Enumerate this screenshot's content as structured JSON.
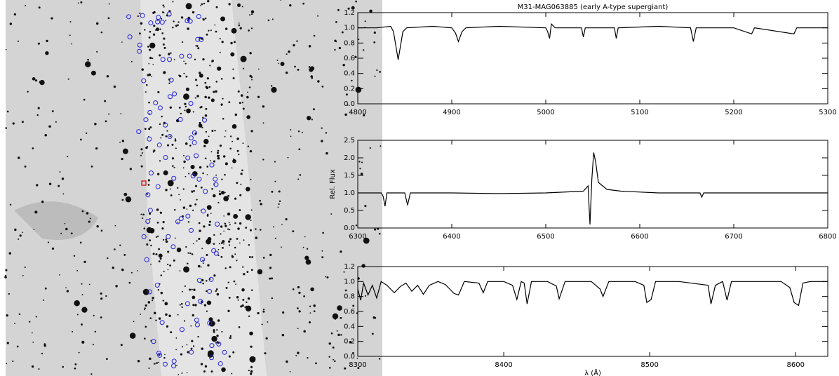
{
  "chart_data": [
    {
      "type": "line",
      "title": "M31-MAG063885 (early A-type supergiant)",
      "color": "#000000",
      "x": [
        4800,
        4820,
        4835,
        4838,
        4843,
        4848,
        4852,
        4880,
        4900,
        4904,
        4907,
        4911,
        4915,
        4950,
        5000,
        5002,
        5004,
        5006,
        5010,
        5038,
        5040,
        5042,
        5073,
        5075,
        5077,
        5120,
        5154,
        5157,
        5160,
        5200,
        5219,
        5222,
        5264,
        5267,
        5300
      ],
      "values": [
        1.0,
        1.0,
        1.02,
        0.95,
        0.58,
        0.95,
        1.0,
        1.02,
        1.0,
        0.93,
        0.82,
        0.95,
        1.0,
        1.02,
        1.0,
        0.95,
        0.86,
        1.05,
        1.0,
        1.0,
        0.88,
        1.0,
        1.0,
        0.86,
        1.0,
        1.02,
        1.0,
        0.82,
        1.0,
        1.0,
        0.92,
        1.0,
        0.92,
        1.0,
        1.0
      ],
      "xlim": [
        4800,
        5300
      ],
      "xticks": [
        4800,
        4900,
        5000,
        5100,
        5200,
        5300
      ],
      "ylim": [
        0,
        1.2
      ],
      "yticks": [
        {
          "value": 0,
          "label": "0.0"
        },
        0.2,
        0.4,
        0.6,
        0.8,
        {
          "value": 1,
          "label": "1.0"
        },
        1.2
      ]
    },
    {
      "type": "line",
      "ylabel": "Rel. Flux",
      "color": "#000000",
      "x": [
        6300,
        6325,
        6327,
        6329,
        6331,
        6350,
        6353,
        6356,
        6400,
        6450,
        6500,
        6540,
        6545,
        6547,
        6549,
        6551,
        6553,
        6556,
        6565,
        6580,
        6620,
        6664,
        6666,
        6668,
        6720,
        6800
      ],
      "values": [
        1.0,
        1.0,
        0.9,
        0.62,
        1.0,
        1.0,
        0.65,
        1.0,
        1.0,
        0.98,
        1.0,
        1.05,
        1.2,
        0.1,
        1.4,
        2.15,
        1.9,
        1.3,
        1.1,
        1.05,
        1.0,
        1.0,
        0.88,
        1.0,
        1.0,
        1.0
      ],
      "xlim": [
        6300,
        6800
      ],
      "xticks": [
        6300,
        6400,
        6500,
        6600,
        6700,
        6800
      ],
      "ylim": [
        0,
        2.5
      ],
      "yticks": [
        {
          "value": 0,
          "label": "0.0"
        },
        0.5,
        {
          "value": 1,
          "label": "1.0"
        },
        1.5,
        {
          "value": 2,
          "label": "2.0"
        },
        2.5
      ]
    },
    {
      "type": "line",
      "xlabel": "λ (Å)",
      "color": "#000000",
      "x": [
        8300,
        8302,
        8304,
        8307,
        8310,
        8313,
        8316,
        8320,
        8325,
        8329,
        8333,
        8337,
        8341,
        8345,
        8349,
        8355,
        8360,
        8366,
        8369,
        8373,
        8383,
        8386,
        8389,
        8400,
        8406,
        8409,
        8412,
        8414,
        8416,
        8419,
        8430,
        8436,
        8438,
        8442,
        8460,
        8466,
        8468,
        8472,
        8490,
        8496,
        8498,
        8501,
        8504,
        8520,
        8540,
        8542,
        8545,
        8550,
        8553,
        8556,
        8590,
        8596,
        8599,
        8602,
        8605,
        8610,
        8622
      ],
      "values": [
        0.9,
        0.75,
        0.98,
        0.82,
        0.95,
        0.78,
        1.0,
        0.95,
        0.85,
        0.93,
        0.98,
        0.87,
        0.95,
        0.83,
        0.95,
        1.0,
        0.96,
        0.84,
        0.82,
        1.0,
        0.98,
        0.85,
        1.0,
        1.0,
        0.95,
        0.76,
        1.0,
        0.98,
        0.7,
        1.0,
        1.0,
        0.94,
        0.77,
        1.0,
        1.0,
        0.9,
        0.8,
        1.0,
        1.0,
        0.95,
        0.72,
        0.76,
        1.0,
        1.0,
        0.95,
        0.7,
        0.95,
        1.0,
        0.75,
        1.0,
        1.0,
        0.92,
        0.72,
        0.68,
        0.98,
        1.0,
        1.0
      ],
      "xlim": [
        8300,
        8622
      ],
      "xticks": [
        8300,
        8400,
        8500,
        8600
      ],
      "ylim": [
        0,
        1.2
      ],
      "yticks": [
        {
          "value": 0,
          "label": "0.0"
        },
        0.2,
        0.4,
        0.6,
        0.8,
        {
          "value": 1,
          "label": "1.0"
        },
        1.2
      ]
    }
  ]
}
